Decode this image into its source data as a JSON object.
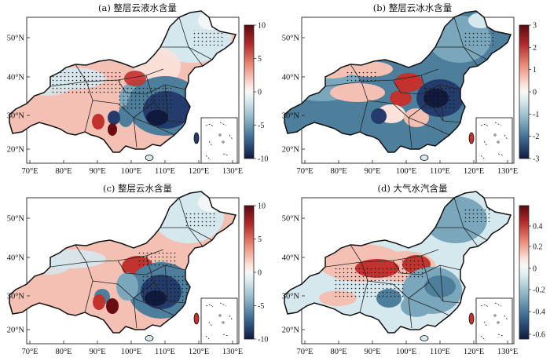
{
  "figure": {
    "panels": [
      {
        "title": "(a) 整层云液水含量",
        "colorbar": [
          "10",
          "5",
          "0",
          "-5",
          "-10"
        ],
        "pattern": "liquid"
      },
      {
        "title": "(b) 整层云冰水含量",
        "colorbar": [
          "3",
          "2",
          "1",
          "0",
          "-1",
          "-2",
          "-3"
        ],
        "pattern": "ice"
      },
      {
        "title": "(c) 整层云水含量",
        "colorbar": [
          "10",
          "5",
          "0",
          "-5",
          "-10"
        ],
        "pattern": "total"
      },
      {
        "title": "(d) 大气水汽含量",
        "colorbar": [
          "0.4",
          "0.2",
          "0",
          "-0.2",
          "-0.4",
          "-0.6"
        ],
        "pattern": "vapor"
      }
    ],
    "lon_labels": [
      "70°E",
      "80°E",
      "90°E",
      "100°E",
      "110°E",
      "120°E",
      "130°E"
    ],
    "lat_labels": [
      "50°N",
      "40°N",
      "30°N",
      "20°N"
    ]
  },
  "colors": {
    "dark_red": "#6b0c12",
    "red": "#c2322f",
    "light_red": "#f3c0b3",
    "pale_red": "#fbe2da",
    "white": "#f6f6f6",
    "pale_blue": "#d5e8ee",
    "blue": "#7aa7bb",
    "mid_blue": "#4d7f9c",
    "dark_blue": "#243c6b",
    "navy": "#101a3e"
  }
}
